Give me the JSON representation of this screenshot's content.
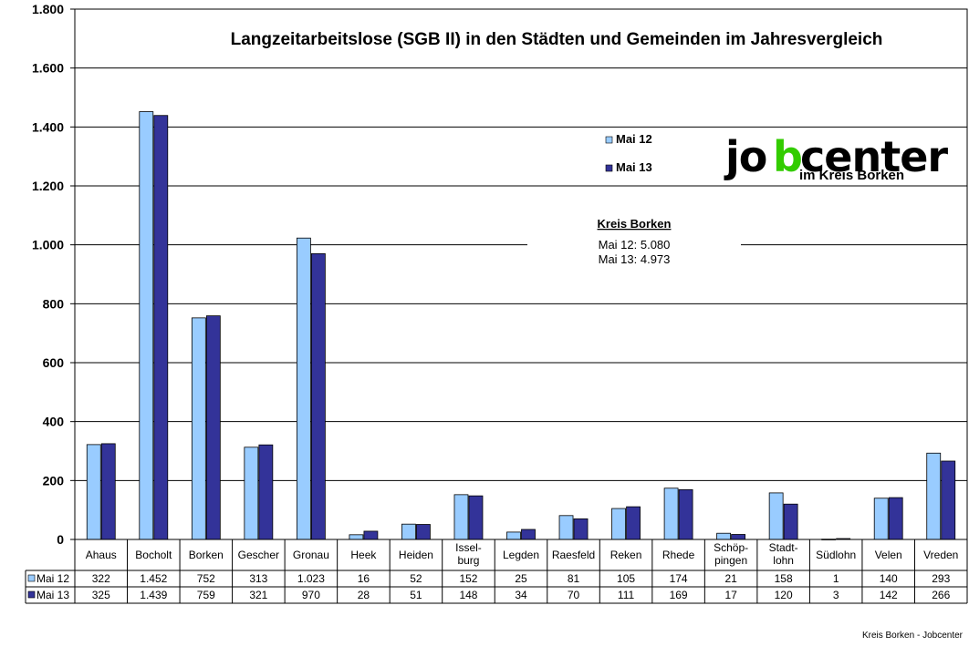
{
  "chart_data": {
    "type": "bar",
    "title": "Langzeitarbeitslose (SGB II) in den Städten und Gemeinden im Jahresvergleich",
    "categories": [
      "Ahaus",
      "Bocholt",
      "Borken",
      "Gescher",
      "Gronau",
      "Heek",
      "Heiden",
      "Issel-|burg",
      "Legden",
      "Raesfeld",
      "Reken",
      "Rhede",
      "Schöp-|pingen",
      "Stadt-|lohn",
      "Südlohn",
      "Velen",
      "Vreden"
    ],
    "series": [
      {
        "name": "Mai 12",
        "color": "#99ccff",
        "values": [
          322,
          1452,
          752,
          313,
          1023,
          16,
          52,
          152,
          25,
          81,
          105,
          174,
          21,
          158,
          1,
          140,
          293
        ],
        "labels": [
          "322",
          "1.452",
          "752",
          "313",
          "1.023",
          "16",
          "52",
          "152",
          "25",
          "81",
          "105",
          "174",
          "21",
          "158",
          "1",
          "140",
          "293"
        ]
      },
      {
        "name": "Mai 13",
        "color": "#333399",
        "values": [
          325,
          1439,
          759,
          321,
          970,
          28,
          51,
          148,
          34,
          70,
          111,
          169,
          17,
          120,
          3,
          142,
          266
        ],
        "labels": [
          "325",
          "1.439",
          "759",
          "321",
          "970",
          "28",
          "51",
          "148",
          "34",
          "70",
          "111",
          "169",
          "17",
          "120",
          "3",
          "142",
          "266"
        ]
      }
    ],
    "ylim": [
      0,
      1800
    ],
    "yticks": [
      0,
      200,
      400,
      600,
      800,
      1000,
      1200,
      1400,
      1600,
      1800
    ],
    "ytick_labels": [
      "0",
      "200",
      "400",
      "600",
      "800",
      "1.000",
      "1.200",
      "1.400",
      "1.600",
      "1.800"
    ],
    "grid": true,
    "legend_position": "top-center",
    "annotation": {
      "title": "Kreis Borken",
      "lines": [
        "Mai 12: 5.080",
        "Mai 13: 4.973"
      ]
    },
    "data_table": true
  },
  "logo": {
    "text_main": "jobcenter",
    "text_sub": "im Kreis Borken",
    "accent_color": "#33cc00"
  },
  "footer": "Kreis Borken - Jobcenter"
}
